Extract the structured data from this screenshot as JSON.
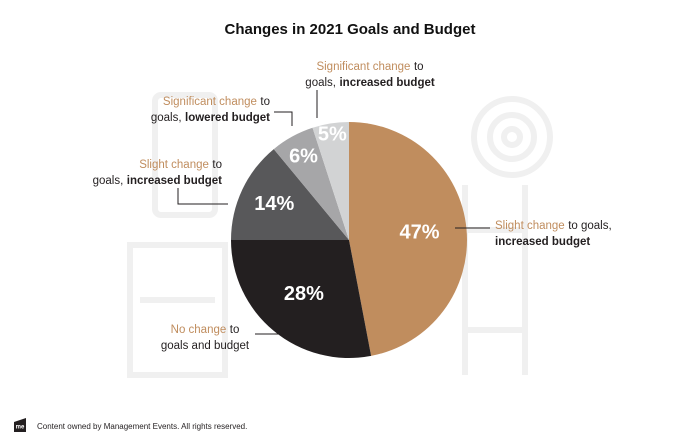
{
  "chart_data": {
    "type": "pie",
    "title": "Changes in 2021 Goals and Budget",
    "values": [
      47,
      28,
      14,
      6,
      5
    ],
    "value_labels": [
      "47%",
      "28%",
      "14%",
      "6%",
      "5%"
    ],
    "colors": [
      "#c08d5e",
      "#231f20",
      "#58585a",
      "#a6a6a8",
      "#d2d3d4"
    ],
    "categories": [
      [
        [
          {
            "text": "Slight change",
            "style": "accent"
          },
          {
            "text": "to goals,"
          }
        ],
        [
          {
            "text": "increased budget",
            "style": "bold"
          }
        ]
      ],
      [
        [
          {
            "text": "No change",
            "style": "accent"
          },
          {
            "text": "to"
          }
        ],
        [
          {
            "text": "goals and budget"
          }
        ]
      ],
      [
        [
          {
            "text": "Slight change",
            "style": "accent"
          },
          {
            "text": "to"
          }
        ],
        [
          {
            "text": "goals,"
          },
          {
            "text": "increased budget",
            "style": "bold"
          }
        ]
      ],
      [
        [
          {
            "text": "Significant change",
            "style": "accent"
          },
          {
            "text": "to"
          }
        ],
        [
          {
            "text": "goals,"
          },
          {
            "text": "lowered budget",
            "style": "bold"
          }
        ]
      ],
      [
        [
          {
            "text": "Significant change",
            "style": "accent"
          },
          {
            "text": "to"
          }
        ],
        [
          {
            "text": "goals,"
          },
          {
            "text": "increased budget",
            "style": "bold"
          }
        ]
      ]
    ]
  },
  "footer": {
    "logo": "me",
    "text": "Content owned by Management Events. All rights reserved."
  }
}
